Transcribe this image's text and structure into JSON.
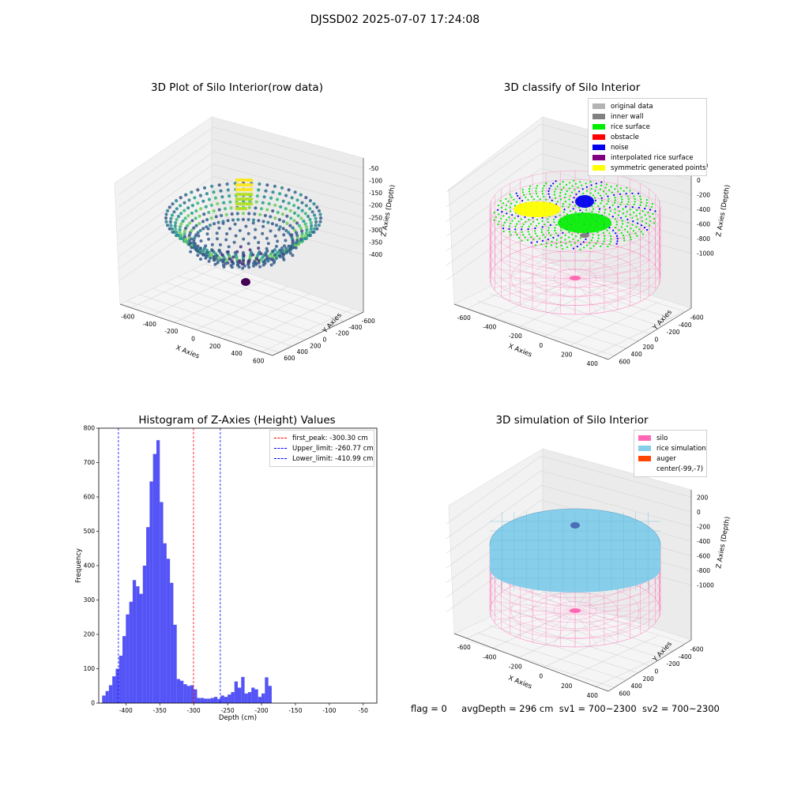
{
  "suptitle": "DJSSD02 2025-07-07 17:24:08",
  "plots": {
    "raw": {
      "title": "3D Plot of Silo Interior(row data)",
      "xlabel": "X Axies",
      "ylabel": "Y Axies",
      "zlabel": "Z Axies (Depth)",
      "xticks": [
        "-600",
        "-400",
        "-200",
        "0",
        "200",
        "400",
        "600"
      ],
      "yticks": [
        "600",
        "400",
        "200",
        "0",
        "-200",
        "-400",
        "-600"
      ],
      "zticks": [
        "-50",
        "-100",
        "-150",
        "-200",
        "-250",
        "-300",
        "-350",
        "-400"
      ]
    },
    "classify": {
      "title": "3D classify of Silo Interior",
      "xlabel": "X Axies",
      "ylabel": "Y Axies",
      "zlabel": "Z Axies (Depth)",
      "xticks": [
        "-600",
        "-400",
        "-200",
        "0",
        "200",
        "400"
      ],
      "yticks": [
        "600",
        "400",
        "200",
        "0",
        "-200",
        "-400",
        "-600"
      ],
      "zticks": [
        "200",
        "0",
        "-200",
        "-400",
        "-600",
        "-800",
        "-1000"
      ],
      "legend": [
        {
          "label": "original data",
          "color": "#b3b3b3"
        },
        {
          "label": "inner wall",
          "color": "#808080"
        },
        {
          "label": "rice surface",
          "color": "#00ee00"
        },
        {
          "label": "obstacle",
          "color": "#ff0000"
        },
        {
          "label": "noise",
          "color": "#0000ee"
        },
        {
          "label": "interpolated rice surface",
          "color": "#800080"
        },
        {
          "label": "symmetric generated points",
          "color": "#ffff00"
        }
      ]
    },
    "simulation": {
      "title": "3D simulation of Silo Interior",
      "xlabel": "X Axies",
      "ylabel": "Y Axies",
      "zlabel": "Z Axies (Depth)",
      "xticks": [
        "-600",
        "-400",
        "-200",
        "0",
        "200",
        "400"
      ],
      "yticks": [
        "600",
        "400",
        "200",
        "0",
        "-200",
        "-400",
        "-600"
      ],
      "zticks": [
        "200",
        "0",
        "-200",
        "-400",
        "-600",
        "-800",
        "-1000"
      ],
      "legend": [
        {
          "label": "silo",
          "color": "#ff69b4"
        },
        {
          "label": "rice simulation",
          "color": "#87ceeb"
        },
        {
          "label": "auger",
          "color": "#ff4500"
        },
        {
          "label": "center(-99,-7)",
          "color": ""
        }
      ]
    }
  },
  "chart_data": {
    "type": "bar",
    "title": "Histogram of Z-Axies (Height) Values",
    "xlabel": "Depth (cm)",
    "ylabel": "Frequency",
    "bar_color": "#4a4af5",
    "bin_edges_start": -435,
    "bin_width": 5,
    "values": [
      22,
      35,
      52,
      78,
      100,
      138,
      195,
      258,
      295,
      358,
      340,
      318,
      400,
      512,
      645,
      725,
      765,
      585,
      465,
      420,
      350,
      228,
      70,
      65,
      55,
      50,
      52,
      40,
      15,
      15,
      13,
      13,
      15,
      18,
      12,
      22,
      18,
      25,
      32,
      63,
      45,
      76,
      28,
      32,
      45,
      40,
      18,
      28,
      75,
      50
    ],
    "xlim": [
      -440,
      -30
    ],
    "ylim": [
      0,
      800
    ],
    "xticks": [
      -400,
      -350,
      -300,
      -250,
      -200,
      -150,
      -100,
      -50
    ],
    "yticks": [
      0,
      100,
      200,
      300,
      400,
      500,
      600,
      700,
      800
    ],
    "vlines": [
      {
        "x": -300.3,
        "label": "first_peak: -300.30 cm",
        "color": "#ff0000"
      },
      {
        "x": -260.77,
        "label": "Upper_limit: -260.77 cm",
        "color": "#0000ff"
      },
      {
        "x": -410.99,
        "label": "Lower_limit: -410.99 cm",
        "color": "#0000ff"
      }
    ]
  },
  "footer": {
    "flag": "flag = 0",
    "avg": "avgDepth = 296 cm",
    "sv1": "sv1 = 700~2300",
    "sv2": "sv2 = 700~2300"
  }
}
